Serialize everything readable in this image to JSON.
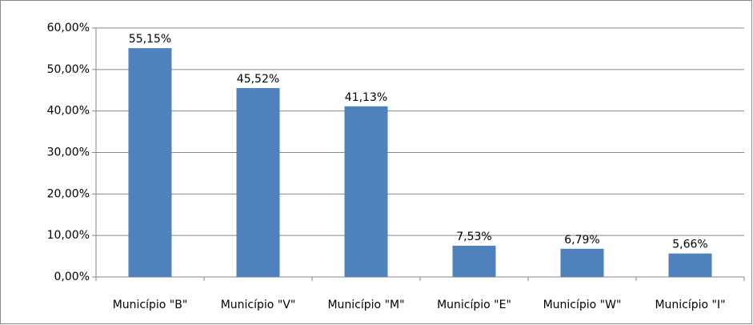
{
  "chart_data": {
    "type": "bar",
    "categories": [
      "Município \"B\"",
      "Município \"V\"",
      "Município \"M\"",
      "Município \"E\"",
      "Município \"W\"",
      "Município \"I\""
    ],
    "values": [
      55.15,
      45.52,
      41.13,
      7.53,
      6.79,
      5.66
    ],
    "value_labels": [
      "55,15%",
      "45,52%",
      "41,13%",
      "7,53%",
      "6,79%",
      "5,66%"
    ],
    "color": "#4f81bd",
    "ylim": [
      0,
      60
    ],
    "yticks": [
      {
        "value": 0,
        "label": "0,00%"
      },
      {
        "value": 10,
        "label": "10,00%"
      },
      {
        "value": 20,
        "label": "20,00%"
      },
      {
        "value": 30,
        "label": "30,00%"
      },
      {
        "value": 40,
        "label": "40,00%"
      },
      {
        "value": 50,
        "label": "50,00%"
      },
      {
        "value": 60,
        "label": "60,00%"
      }
    ],
    "grid": true
  }
}
